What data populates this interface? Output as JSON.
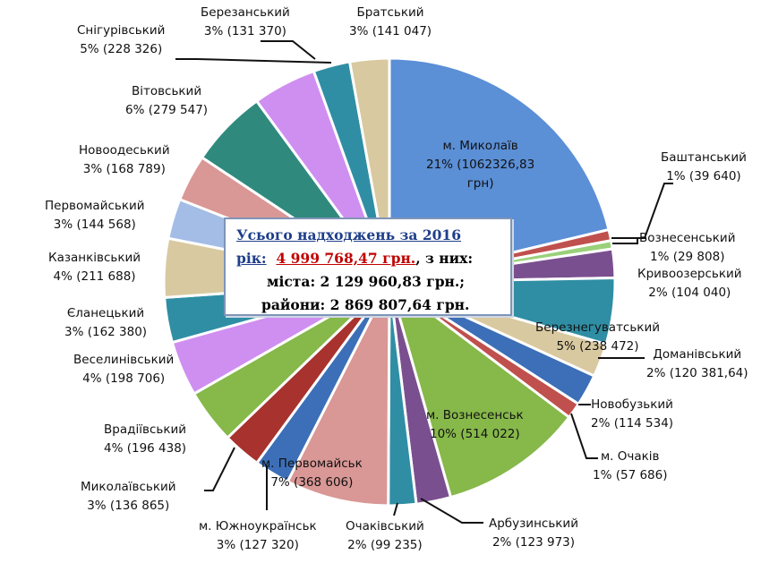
{
  "chart_data": {
    "type": "pie",
    "title": "",
    "summary": {
      "line1": "Усього надходжень за 2016",
      "line2_prefix": "рік:",
      "total": "4 999 768,47 грн.",
      "line2_suffix": ", з них:",
      "line3": "міста: 2 129 960,83 грн.;",
      "line4": "райони: 2 869 807,64 грн."
    },
    "slices": [
      {
        "name": "м. Миколаїв",
        "pct_label": "21% (1062326,83",
        "extra": "грн)",
        "value": 1062326.83,
        "color": "#5b8fd6"
      },
      {
        "name": "Баштанський",
        "pct_label": "1%  (39 640)",
        "value": 39640,
        "color": "#c0504d"
      },
      {
        "name": "Вознесенський",
        "pct_label": "1% (29 808)",
        "value": 29808,
        "color": "#9bd07a"
      },
      {
        "name": "Кривоозерський",
        "pct_label": "2% (104 040)",
        "value": 104040,
        "color": "#7a4f8f"
      },
      {
        "name": "Березнегуватський",
        "pct_label": "5% (238 472)",
        "value": 238472,
        "color": "#2f8ea4"
      },
      {
        "name": "Доманівський",
        "pct_label": "2% (120 381,64)",
        "value": 120381.64,
        "color": "#d9c9a0"
      },
      {
        "name": "Новобузький",
        "pct_label": "2% (114 534)",
        "value": 114534,
        "color": "#3c6fb8"
      },
      {
        "name": "м. Очаків",
        "pct_label": "1% (57 686)",
        "value": 57686,
        "color": "#c0504d"
      },
      {
        "name": "м. Вознесенськ",
        "pct_label": "10% (514 022)",
        "value": 514022,
        "color": "#86b84a"
      },
      {
        "name": "Арбузинський",
        "pct_label": "2% (123 973)",
        "value": 123973,
        "color": "#7a4f8f"
      },
      {
        "name": "Очаківський",
        "pct_label": "2% (99 235)",
        "value": 99235,
        "color": "#2f8ea4"
      },
      {
        "name": "м. Первомайськ",
        "pct_label": "7% (368 606)",
        "value": 368606,
        "color": "#d99795"
      },
      {
        "name": "м. Южноукраїнськ",
        "pct_label": "3% (127 320)",
        "value": 127320,
        "color": "#3c6fb8"
      },
      {
        "name": "Миколаївський",
        "pct_label": "3%  (136 865)",
        "value": 136865,
        "color": "#a8322e"
      },
      {
        "name": "Врадіївський",
        "pct_label": "4% (196 438)",
        "value": 196438,
        "color": "#86b84a"
      },
      {
        "name": "Веселинівський",
        "pct_label": "4% (198 706)",
        "value": 198706,
        "color": "#cf8ff0"
      },
      {
        "name": "Єланецький",
        "pct_label": "3% (162 380)",
        "value": 162380,
        "color": "#2f8ea4"
      },
      {
        "name": "Казанківський",
        "pct_label": "4% (211 688)",
        "value": 211688,
        "color": "#d9c9a0"
      },
      {
        "name": "Первомайський",
        "pct_label": "3% (144 568)",
        "value": 144568,
        "color": "#a4bde6"
      },
      {
        "name": "Новоодеський",
        "pct_label": "3% (168 789)",
        "value": 168789,
        "color": "#d99795"
      },
      {
        "name": "Вітовський",
        "pct_label": "6% (279 547)",
        "value": 279547,
        "color": "#2f8a7d"
      },
      {
        "name": "Снігурівський",
        "pct_label": "5% (228 326)",
        "value": 228326,
        "color": "#cf8ff0"
      },
      {
        "name": "Березанський",
        "pct_label": "3% (131 370)",
        "value": 131370,
        "color": "#2f8ea4"
      },
      {
        "name": "Братський",
        "pct_label": "3% (141 047)",
        "value": 141047,
        "color": "#d9c9a0"
      }
    ]
  }
}
